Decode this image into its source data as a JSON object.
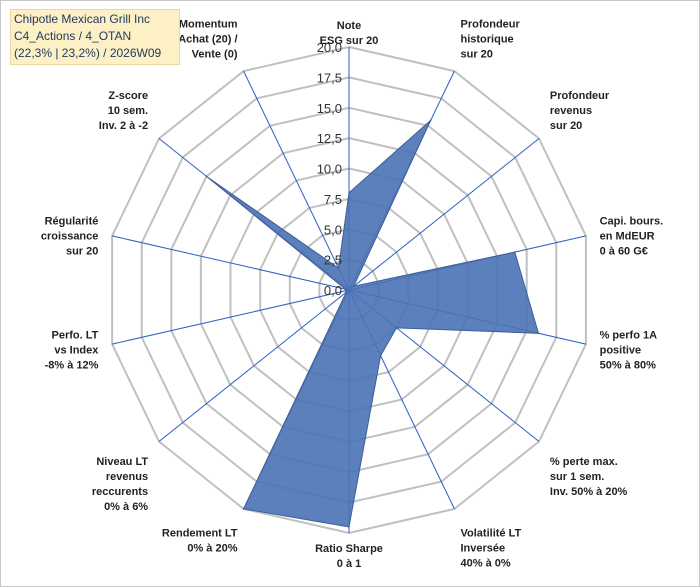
{
  "title": {
    "line1": "Chipotle Mexican Grill Inc",
    "line2": "C4_Actions / 4_OTAN",
    "line3": "(22,3% | 23,2%) / 2026W09"
  },
  "colors": {
    "fill": "#4a72b5",
    "grid": "#c0c0c0",
    "axis": "#2a5fc4",
    "title_bg": "#fdf0c4"
  },
  "chart_data": {
    "type": "radar",
    "rmax": 20,
    "ticks": [
      "0,0",
      "2,5",
      "5,0",
      "7,5",
      "10,0",
      "12,5",
      "15,0",
      "17,5",
      "20,0"
    ],
    "axes": [
      {
        "label": [
          "Note",
          "ESG sur 20"
        ],
        "value": 8.0
      },
      {
        "label": [
          "Profondeur",
          "historique",
          "sur 20"
        ],
        "value": 15.5
      },
      {
        "label": [
          "Profondeur",
          "revenus",
          "sur 20"
        ],
        "value": 0.5
      },
      {
        "label": [
          "Capi. bours.",
          "en MdEUR",
          "0 à 60 G€"
        ],
        "value": 14.0
      },
      {
        "label": [
          "% perfo 1A",
          "positive",
          "50% à 80%"
        ],
        "value": 16.0
      },
      {
        "label": [
          "% perte max.",
          "sur 1 sem.",
          "Inv. 50% à 20%"
        ],
        "value": 5.0
      },
      {
        "label": [
          "Volatilité LT",
          "Inversée",
          "40% à 0%"
        ],
        "value": 6.0
      },
      {
        "label": [
          "Ratio Sharpe",
          "0 à 1"
        ],
        "value": 19.5
      },
      {
        "label": [
          "Rendement LT",
          "0% à 20%"
        ],
        "value": 20.0
      },
      {
        "label": [
          "Niveau LT",
          "revenus",
          "reccurents",
          "0% à 6%"
        ],
        "value": 0.3
      },
      {
        "label": [
          "Perfo. LT",
          "vs Index",
          "-8% à 12%"
        ],
        "value": 0.3
      },
      {
        "label": [
          "Régularité",
          "croissance",
          "sur 20"
        ],
        "value": 0.3
      },
      {
        "label": [
          "Z-score",
          "10 sem.",
          "Inv. 2 à -2"
        ],
        "value": 15.0
      },
      {
        "label": [
          "Momentum",
          "Achat (20) /",
          "Vente (0)"
        ],
        "value": 2.0
      }
    ]
  }
}
